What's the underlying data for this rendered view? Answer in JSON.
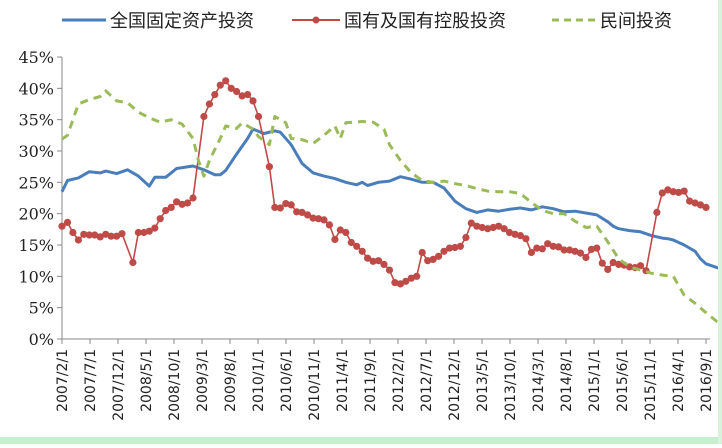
{
  "chart_data": {
    "type": "line",
    "title": "",
    "xlabel": "",
    "ylabel": "",
    "ylim": [
      0,
      45
    ],
    "y_ticks": [
      "0%",
      "5%",
      "10%",
      "15%",
      "20%",
      "25%",
      "30%",
      "35%",
      "40%",
      "45%"
    ],
    "x_tick_labels": [
      "2007/2/1",
      "2007/7/1",
      "2007/12/1",
      "2008/5/1",
      "2008/10/1",
      "2009/3/1",
      "2009/8/1",
      "2010/1/1",
      "2010/6/1",
      "2010/11/1",
      "2011/4/1",
      "2011/9/1",
      "2012/2/1",
      "2012/7/1",
      "2012/12/1",
      "2013/5/1",
      "2013/10/1",
      "2014/3/1",
      "2014/8/1",
      "2015/1/1",
      "2015/6/1",
      "2015/11/1",
      "2016/4/1",
      "2016/9/1"
    ],
    "x_range_months": [
      0,
      115
    ],
    "grid": false,
    "legend_position": "top",
    "series": [
      {
        "name": "全国固定资产投资",
        "color": "#4a7ebb",
        "style": "solid",
        "points": [
          [
            0,
            23.5
          ],
          [
            1,
            25.3
          ],
          [
            3,
            25.7
          ],
          [
            5,
            26.7
          ],
          [
            7,
            26.5
          ],
          [
            8,
            26.8
          ],
          [
            10,
            26.4
          ],
          [
            12,
            27.0
          ],
          [
            14,
            26.0
          ],
          [
            16,
            24.4
          ],
          [
            17,
            25.8
          ],
          [
            19,
            25.8
          ],
          [
            21,
            27.2
          ],
          [
            24,
            27.6
          ],
          [
            26,
            27.0
          ],
          [
            28,
            26.2
          ],
          [
            29,
            26.2
          ],
          [
            30,
            26.9
          ],
          [
            32,
            29.5
          ],
          [
            34,
            32.0
          ],
          [
            35,
            33.5
          ],
          [
            37,
            32.8
          ],
          [
            39,
            33.2
          ],
          [
            40,
            33.0
          ],
          [
            42,
            31.0
          ],
          [
            44,
            28.0
          ],
          [
            46,
            26.5
          ],
          [
            48,
            26.0
          ],
          [
            50,
            25.6
          ],
          [
            52,
            25.0
          ],
          [
            54,
            24.6
          ],
          [
            55,
            25.0
          ],
          [
            56,
            24.5
          ],
          [
            58,
            25.0
          ],
          [
            60,
            25.2
          ],
          [
            62,
            25.9
          ],
          [
            64,
            25.5
          ],
          [
            66,
            25.0
          ],
          [
            68,
            25.0
          ],
          [
            70,
            24.1
          ],
          [
            72,
            22.0
          ],
          [
            74,
            20.8
          ],
          [
            76,
            20.2
          ],
          [
            77,
            20.4
          ],
          [
            78,
            20.6
          ],
          [
            80,
            20.4
          ],
          [
            82,
            20.7
          ],
          [
            84,
            20.9
          ],
          [
            86,
            20.6
          ],
          [
            88,
            21.1
          ],
          [
            90,
            20.8
          ],
          [
            92,
            20.3
          ],
          [
            94,
            20.4
          ],
          [
            96,
            20.1
          ],
          [
            98,
            19.8
          ],
          [
            100,
            18.7
          ],
          [
            101,
            18.0
          ],
          [
            102,
            17.6
          ],
          [
            104,
            17.3
          ],
          [
            106,
            17.1
          ],
          [
            108,
            16.5
          ],
          [
            110,
            16.1
          ],
          [
            111,
            16.0
          ],
          [
            112,
            15.8
          ],
          [
            114,
            15.0
          ],
          [
            116,
            14.0
          ],
          [
            117,
            12.8
          ],
          [
            118,
            12.0
          ],
          [
            120,
            11.4
          ],
          [
            122,
            11.0
          ],
          [
            124,
            10.6
          ],
          [
            126,
            10.3
          ],
          [
            128,
            10.2
          ],
          [
            129,
            10.3
          ],
          [
            130,
            10.5
          ],
          [
            132,
            10.5
          ],
          [
            134,
            10.7
          ],
          [
            135,
            10.9
          ],
          [
            136,
            10.5
          ],
          [
            138,
            9.6
          ],
          [
            140,
            8.2
          ],
          [
            141,
            8.2
          ],
          [
            142,
            8.4
          ]
        ]
      },
      {
        "name": "国有及国有控股投资",
        "color": "#be4b48",
        "style": "solid-markers",
        "points": [
          [
            0,
            18.0
          ],
          [
            1,
            18.6
          ],
          [
            2,
            17.0
          ],
          [
            3,
            15.8
          ],
          [
            4,
            16.7
          ],
          [
            5,
            16.6
          ],
          [
            6,
            16.6
          ],
          [
            7,
            16.3
          ],
          [
            8,
            16.7
          ],
          [
            9,
            16.4
          ],
          [
            10,
            16.4
          ],
          [
            11,
            16.8
          ],
          [
            13,
            12.2
          ],
          [
            14,
            17.0
          ],
          [
            15,
            17.0
          ],
          [
            16,
            17.2
          ],
          [
            17,
            17.7
          ],
          [
            18,
            19.2
          ],
          [
            19,
            20.5
          ],
          [
            20,
            21.0
          ],
          [
            21,
            21.9
          ],
          [
            22,
            21.5
          ],
          [
            23,
            21.7
          ],
          [
            24,
            22.5
          ],
          [
            26,
            35.5
          ],
          [
            27,
            37.5
          ],
          [
            28,
            39.0
          ],
          [
            29,
            40.5
          ],
          [
            30,
            41.2
          ],
          [
            31,
            40.0
          ],
          [
            32,
            39.5
          ],
          [
            33,
            38.8
          ],
          [
            34,
            39.0
          ],
          [
            35,
            38.0
          ],
          [
            36,
            35.5
          ],
          [
            38,
            27.5
          ],
          [
            39,
            21.0
          ],
          [
            40,
            20.9
          ],
          [
            41,
            21.6
          ],
          [
            42,
            21.4
          ],
          [
            43,
            20.3
          ],
          [
            44,
            20.2
          ],
          [
            45,
            19.8
          ],
          [
            46,
            19.3
          ],
          [
            47,
            19.2
          ],
          [
            48,
            19.0
          ],
          [
            49,
            18.2
          ],
          [
            50,
            15.9
          ],
          [
            51,
            17.4
          ],
          [
            52,
            17.0
          ],
          [
            53,
            15.4
          ],
          [
            54,
            14.8
          ],
          [
            55,
            14.0
          ],
          [
            56,
            12.9
          ],
          [
            57,
            12.4
          ],
          [
            58,
            12.5
          ],
          [
            59,
            11.9
          ],
          [
            60,
            11.0
          ],
          [
            61,
            9.0
          ],
          [
            62,
            8.8
          ],
          [
            63,
            9.2
          ],
          [
            64,
            9.7
          ],
          [
            65,
            10.0
          ],
          [
            66,
            13.8
          ],
          [
            67,
            12.5
          ],
          [
            68,
            12.7
          ],
          [
            69,
            13.2
          ],
          [
            70,
            14.0
          ],
          [
            71,
            14.5
          ],
          [
            72,
            14.6
          ],
          [
            73,
            14.8
          ],
          [
            74,
            16.2
          ],
          [
            75,
            18.5
          ],
          [
            76,
            18.0
          ],
          [
            77,
            17.8
          ],
          [
            78,
            17.6
          ],
          [
            79,
            17.8
          ],
          [
            80,
            18.0
          ],
          [
            81,
            17.6
          ],
          [
            82,
            17.0
          ],
          [
            83,
            16.7
          ],
          [
            84,
            16.5
          ],
          [
            85,
            16.0
          ],
          [
            86,
            13.8
          ],
          [
            87,
            14.5
          ],
          [
            88,
            14.4
          ],
          [
            89,
            15.2
          ],
          [
            90,
            14.8
          ],
          [
            91,
            14.7
          ],
          [
            92,
            14.2
          ],
          [
            93,
            14.2
          ],
          [
            94,
            14.0
          ],
          [
            95,
            13.7
          ],
          [
            96,
            13.0
          ],
          [
            97,
            14.3
          ],
          [
            98,
            14.5
          ],
          [
            99,
            12.1
          ],
          [
            100,
            11.1
          ],
          [
            101,
            12.2
          ],
          [
            102,
            11.9
          ],
          [
            103,
            11.8
          ],
          [
            104,
            11.5
          ],
          [
            105,
            11.4
          ],
          [
            106,
            11.7
          ],
          [
            107,
            10.9
          ],
          [
            109,
            20.2
          ],
          [
            110,
            23.3
          ],
          [
            111,
            23.8
          ],
          [
            112,
            23.5
          ],
          [
            113,
            23.4
          ],
          [
            114,
            23.6
          ],
          [
            115,
            22.0
          ],
          [
            116,
            21.7
          ],
          [
            117,
            21.4
          ],
          [
            118,
            21.0
          ]
        ]
      },
      {
        "name": "民间投资",
        "color": "#9bbb59",
        "style": "dashed",
        "points": [
          [
            0,
            31.9
          ],
          [
            1,
            32.5
          ],
          [
            3,
            37.5
          ],
          [
            5,
            38.2
          ],
          [
            7,
            38.7
          ],
          [
            8,
            39.6
          ],
          [
            10,
            38.0
          ],
          [
            12,
            37.7
          ],
          [
            14,
            36.2
          ],
          [
            16,
            35.3
          ],
          [
            18,
            34.6
          ],
          [
            20,
            35.0
          ],
          [
            22,
            34.3
          ],
          [
            24,
            32.0
          ],
          [
            25,
            28.5
          ],
          [
            26,
            26.0
          ],
          [
            27,
            28.5
          ],
          [
            29,
            32.0
          ],
          [
            30,
            34.0
          ],
          [
            32,
            33.6
          ],
          [
            33,
            34.5
          ],
          [
            35,
            33.5
          ],
          [
            36,
            32.3
          ],
          [
            38,
            31.0
          ],
          [
            39,
            35.5
          ],
          [
            41,
            34.5
          ],
          [
            42,
            32.0
          ],
          [
            44,
            31.8
          ],
          [
            46,
            31.2
          ],
          [
            48,
            32.5
          ],
          [
            50,
            34.0
          ],
          [
            51,
            32.0
          ],
          [
            52,
            34.5
          ],
          [
            55,
            34.7
          ],
          [
            57,
            34.6
          ],
          [
            59,
            33.5
          ],
          [
            60,
            31.0
          ],
          [
            62,
            28.5
          ],
          [
            64,
            26.5
          ],
          [
            66,
            25.3
          ],
          [
            68,
            25.0
          ],
          [
            70,
            25.2
          ],
          [
            72,
            24.8
          ],
          [
            74,
            24.5
          ],
          [
            76,
            24.0
          ],
          [
            78,
            23.6
          ],
          [
            80,
            23.5
          ],
          [
            82,
            23.5
          ],
          [
            84,
            23.2
          ],
          [
            86,
            21.8
          ],
          [
            88,
            20.5
          ],
          [
            90,
            20.0
          ],
          [
            92,
            20.0
          ],
          [
            94,
            18.8
          ],
          [
            96,
            17.8
          ],
          [
            98,
            18.0
          ],
          [
            100,
            15.5
          ],
          [
            102,
            12.8
          ],
          [
            104,
            11.5
          ],
          [
            106,
            11.0
          ],
          [
            108,
            10.5
          ],
          [
            110,
            10.2
          ],
          [
            112,
            10.0
          ],
          [
            114,
            7.0
          ],
          [
            116,
            5.7
          ],
          [
            118,
            4.2
          ],
          [
            120,
            2.8
          ],
          [
            122,
            2.2
          ],
          [
            124,
            2.5
          ]
        ]
      }
    ]
  },
  "legend": {
    "items": [
      {
        "label": "全国固定资产投资",
        "color": "#4a7ebb",
        "style": "solid"
      },
      {
        "label": "国有及国有控股投资",
        "color": "#be4b48",
        "style": "marker"
      },
      {
        "label": "民间投资",
        "color": "#9bbb59",
        "style": "dashed"
      }
    ]
  }
}
